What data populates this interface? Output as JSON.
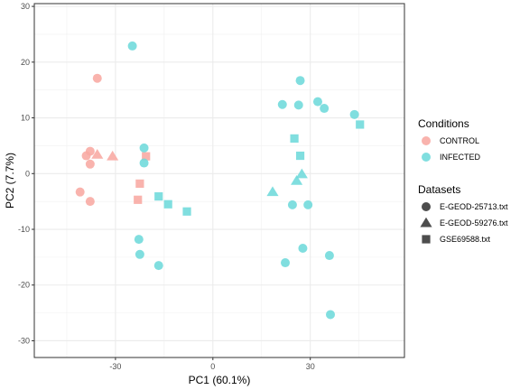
{
  "chart_data": {
    "type": "scatter",
    "xlabel": "PC1 (60.1%)",
    "ylabel": "PC2 (7.7%)",
    "xlim": [
      -55,
      59
    ],
    "ylim": [
      -33,
      30.5
    ],
    "xticks": [
      -30,
      0,
      30
    ],
    "yticks": [
      -30,
      -20,
      -10,
      0,
      10,
      20,
      30
    ],
    "grid": true,
    "legend_position": "right",
    "legends": [
      {
        "title": "Conditions",
        "entries": [
          {
            "label": "CONTROL",
            "color": "#F8A9A2"
          },
          {
            "label": "INFECTED",
            "color": "#6ED9DB"
          }
        ]
      },
      {
        "title": "Datasets",
        "entries": [
          {
            "label": "E-GEOD-25713.txt",
            "shape": "circle"
          },
          {
            "label": "E-GEOD-59276.txt",
            "shape": "triangle"
          },
          {
            "label": "GSE69588.txt",
            "shape": "square"
          }
        ]
      }
    ],
    "points": [
      {
        "x": -35.6,
        "y": 17.1,
        "condition": "CONTROL",
        "dataset": "E-GEOD-25713.txt"
      },
      {
        "x": -37.8,
        "y": 4.0,
        "condition": "CONTROL",
        "dataset": "E-GEOD-25713.txt"
      },
      {
        "x": -39.0,
        "y": 3.2,
        "condition": "CONTROL",
        "dataset": "E-GEOD-25713.txt"
      },
      {
        "x": -37.8,
        "y": 1.7,
        "condition": "CONTROL",
        "dataset": "E-GEOD-25713.txt"
      },
      {
        "x": -40.9,
        "y": -3.3,
        "condition": "CONTROL",
        "dataset": "E-GEOD-25713.txt"
      },
      {
        "x": -37.8,
        "y": -5.0,
        "condition": "CONTROL",
        "dataset": "E-GEOD-25713.txt"
      },
      {
        "x": -35.6,
        "y": 3.4,
        "condition": "CONTROL",
        "dataset": "E-GEOD-59276.txt"
      },
      {
        "x": -30.9,
        "y": 3.1,
        "condition": "CONTROL",
        "dataset": "E-GEOD-59276.txt"
      },
      {
        "x": -20.6,
        "y": 3.1,
        "condition": "CONTROL",
        "dataset": "GSE69588.txt"
      },
      {
        "x": -22.5,
        "y": -1.8,
        "condition": "CONTROL",
        "dataset": "GSE69588.txt"
      },
      {
        "x": -23.1,
        "y": -4.7,
        "condition": "CONTROL",
        "dataset": "GSE69588.txt"
      },
      {
        "x": -24.8,
        "y": 22.9,
        "condition": "INFECTED",
        "dataset": "E-GEOD-25713.txt"
      },
      {
        "x": -21.2,
        "y": 4.6,
        "condition": "INFECTED",
        "dataset": "E-GEOD-25713.txt"
      },
      {
        "x": -21.2,
        "y": 1.9,
        "condition": "INFECTED",
        "dataset": "E-GEOD-25713.txt"
      },
      {
        "x": -22.8,
        "y": -11.8,
        "condition": "INFECTED",
        "dataset": "E-GEOD-25713.txt"
      },
      {
        "x": -22.5,
        "y": -14.5,
        "condition": "INFECTED",
        "dataset": "E-GEOD-25713.txt"
      },
      {
        "x": -16.7,
        "y": -16.5,
        "condition": "INFECTED",
        "dataset": "E-GEOD-25713.txt"
      },
      {
        "x": 26.9,
        "y": 16.7,
        "condition": "INFECTED",
        "dataset": "E-GEOD-25713.txt"
      },
      {
        "x": 21.4,
        "y": 12.4,
        "condition": "INFECTED",
        "dataset": "E-GEOD-25713.txt"
      },
      {
        "x": 26.4,
        "y": 12.3,
        "condition": "INFECTED",
        "dataset": "E-GEOD-25713.txt"
      },
      {
        "x": 32.3,
        "y": 12.9,
        "condition": "INFECTED",
        "dataset": "E-GEOD-25713.txt"
      },
      {
        "x": 34.3,
        "y": 11.7,
        "condition": "INFECTED",
        "dataset": "E-GEOD-25713.txt"
      },
      {
        "x": 43.6,
        "y": 10.6,
        "condition": "INFECTED",
        "dataset": "E-GEOD-25713.txt"
      },
      {
        "x": 24.5,
        "y": -5.6,
        "condition": "INFECTED",
        "dataset": "E-GEOD-25713.txt"
      },
      {
        "x": 29.3,
        "y": -5.6,
        "condition": "INFECTED",
        "dataset": "E-GEOD-25713.txt"
      },
      {
        "x": 27.7,
        "y": -13.4,
        "condition": "INFECTED",
        "dataset": "E-GEOD-25713.txt"
      },
      {
        "x": 35.9,
        "y": -14.7,
        "condition": "INFECTED",
        "dataset": "E-GEOD-25713.txt"
      },
      {
        "x": 22.3,
        "y": -16.0,
        "condition": "INFECTED",
        "dataset": "E-GEOD-25713.txt"
      },
      {
        "x": 36.2,
        "y": -25.3,
        "condition": "INFECTED",
        "dataset": "E-GEOD-25713.txt"
      },
      {
        "x": 18.4,
        "y": -3.3,
        "condition": "INFECTED",
        "dataset": "E-GEOD-59276.txt"
      },
      {
        "x": 25.8,
        "y": -1.3,
        "condition": "INFECTED",
        "dataset": "E-GEOD-59276.txt"
      },
      {
        "x": 27.4,
        "y": -0.1,
        "condition": "INFECTED",
        "dataset": "E-GEOD-59276.txt"
      },
      {
        "x": 25.1,
        "y": 6.3,
        "condition": "INFECTED",
        "dataset": "GSE69588.txt"
      },
      {
        "x": 26.9,
        "y": 3.2,
        "condition": "INFECTED",
        "dataset": "GSE69588.txt"
      },
      {
        "x": 45.3,
        "y": 8.8,
        "condition": "INFECTED",
        "dataset": "GSE69588.txt"
      },
      {
        "x": -16.7,
        "y": -4.1,
        "condition": "INFECTED",
        "dataset": "GSE69588.txt"
      },
      {
        "x": -13.8,
        "y": -5.5,
        "condition": "INFECTED",
        "dataset": "GSE69588.txt"
      },
      {
        "x": -8.0,
        "y": -6.8,
        "condition": "INFECTED",
        "dataset": "GSE69588.txt"
      }
    ]
  }
}
